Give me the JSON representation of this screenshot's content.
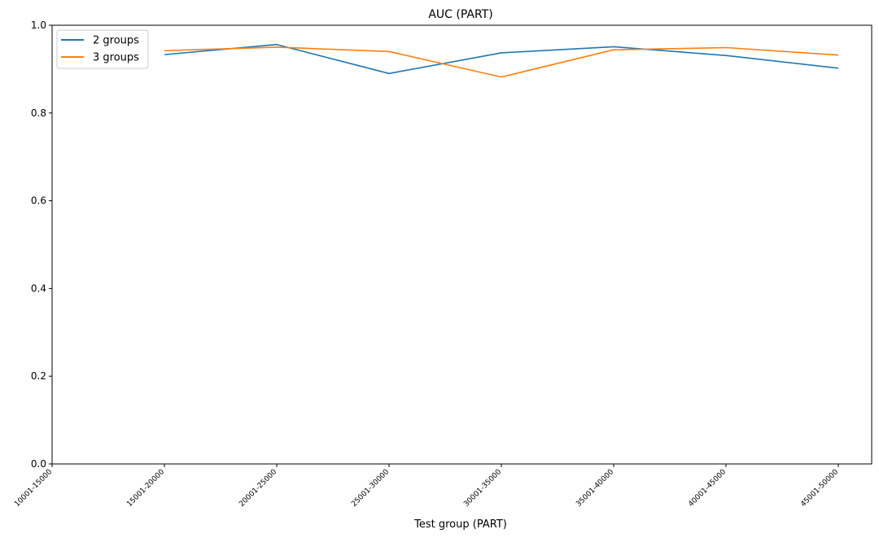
{
  "chart_data": {
    "type": "line",
    "title": "AUC (PART)",
    "xlabel": "Test group (PART)",
    "ylabel": "",
    "ylim": [
      0.0,
      1.0
    ],
    "yticks": [
      "0.0",
      "0.2",
      "0.4",
      "0.6",
      "0.8",
      "1.0"
    ],
    "categories": [
      "10001-15000",
      "15001-20000",
      "20001-25000",
      "25001-30000",
      "30001-35000",
      "35001-40000",
      "40001-45000",
      "45001-50000"
    ],
    "series": [
      {
        "name": "2 groups",
        "color": "#1f77b4",
        "values": [
          null,
          0.933,
          0.956,
          0.89,
          0.937,
          0.951,
          0.931,
          0.902
        ]
      },
      {
        "name": "3 groups",
        "color": "#ff7f0e",
        "values": [
          null,
          0.942,
          0.95,
          0.94,
          0.882,
          0.944,
          0.949,
          0.932
        ]
      }
    ],
    "legend_position": "top-left",
    "grid": false
  }
}
